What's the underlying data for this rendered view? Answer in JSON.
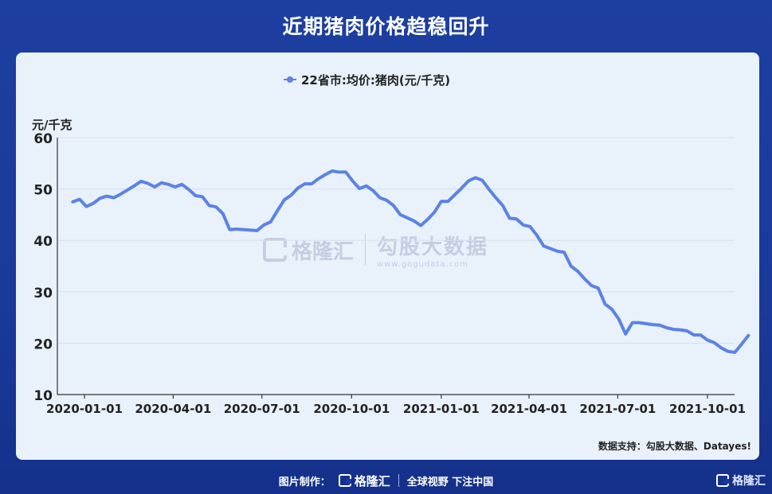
{
  "header": {
    "title": "近期猪肉价格趋稳回升"
  },
  "watermark": {
    "brand": "格隆汇",
    "partner": "勾股大数据",
    "partner_url": "www.gogudata.com"
  },
  "chart_data": {
    "type": "line",
    "ylabel": "元/千克",
    "ylim": [
      10,
      60
    ],
    "y_ticks": [
      "60",
      "50",
      "40",
      "30",
      "20",
      "10"
    ],
    "x_ticks": [
      "2020-01-01",
      "2020-04-01",
      "2020-07-01",
      "2020-10-01",
      "2021-01-01",
      "2021-04-01",
      "2021-07-01",
      "2021-10-01"
    ],
    "grid": true,
    "legend": "top-center",
    "series": [
      {
        "name": "22省市:均价:猪肉(元/千克)",
        "color": "#5b82e6",
        "points": [
          [
            "2019-12-20",
            47.5
          ],
          [
            "2019-12-27",
            48.0
          ],
          [
            "2020-01-03",
            46.6
          ],
          [
            "2020-01-10",
            47.2
          ],
          [
            "2020-01-17",
            48.2
          ],
          [
            "2020-01-24",
            48.6
          ],
          [
            "2020-01-31",
            48.3
          ],
          [
            "2020-02-07",
            49.0
          ],
          [
            "2020-02-14",
            49.8
          ],
          [
            "2020-02-21",
            50.6
          ],
          [
            "2020-02-28",
            51.5
          ],
          [
            "2020-03-06",
            51.1
          ],
          [
            "2020-03-13",
            50.4
          ],
          [
            "2020-03-20",
            51.2
          ],
          [
            "2020-03-27",
            50.9
          ],
          [
            "2020-04-03",
            50.4
          ],
          [
            "2020-04-10",
            50.9
          ],
          [
            "2020-04-17",
            49.9
          ],
          [
            "2020-04-24",
            48.7
          ],
          [
            "2020-05-01",
            48.5
          ],
          [
            "2020-05-08",
            46.8
          ],
          [
            "2020-05-15",
            46.5
          ],
          [
            "2020-05-22",
            45.2
          ],
          [
            "2020-05-29",
            42.1
          ],
          [
            "2020-06-05",
            42.2
          ],
          [
            "2020-06-12",
            42.1
          ],
          [
            "2020-06-19",
            42.0
          ],
          [
            "2020-06-26",
            41.9
          ],
          [
            "2020-07-03",
            43.0
          ],
          [
            "2020-07-10",
            43.6
          ],
          [
            "2020-07-17",
            45.8
          ],
          [
            "2020-07-24",
            47.9
          ],
          [
            "2020-07-31",
            48.8
          ],
          [
            "2020-08-07",
            50.2
          ],
          [
            "2020-08-14",
            51.0
          ],
          [
            "2020-08-21",
            51.0
          ],
          [
            "2020-08-28",
            52.0
          ],
          [
            "2020-09-04",
            52.8
          ],
          [
            "2020-09-11",
            53.5
          ],
          [
            "2020-09-18",
            53.3
          ],
          [
            "2020-09-25",
            53.3
          ],
          [
            "2020-10-02",
            51.6
          ],
          [
            "2020-10-09",
            50.1
          ],
          [
            "2020-10-16",
            50.6
          ],
          [
            "2020-10-23",
            49.7
          ],
          [
            "2020-10-30",
            48.3
          ],
          [
            "2020-11-06",
            47.8
          ],
          [
            "2020-11-13",
            46.8
          ],
          [
            "2020-11-20",
            45.0
          ],
          [
            "2020-11-27",
            44.4
          ],
          [
            "2020-12-04",
            43.8
          ],
          [
            "2020-12-11",
            42.9
          ],
          [
            "2020-12-18",
            44.1
          ],
          [
            "2020-12-25",
            45.5
          ],
          [
            "2021-01-01",
            47.6
          ],
          [
            "2021-01-08",
            47.6
          ],
          [
            "2021-01-15",
            48.9
          ],
          [
            "2021-01-22",
            50.2
          ],
          [
            "2021-01-29",
            51.6
          ],
          [
            "2021-02-05",
            52.2
          ],
          [
            "2021-02-12",
            51.7
          ],
          [
            "2021-02-19",
            49.9
          ],
          [
            "2021-02-26",
            48.3
          ],
          [
            "2021-03-05",
            46.8
          ],
          [
            "2021-03-12",
            44.3
          ],
          [
            "2021-03-19",
            44.2
          ],
          [
            "2021-03-26",
            43.0
          ],
          [
            "2021-04-02",
            42.7
          ],
          [
            "2021-04-09",
            41.0
          ],
          [
            "2021-04-16",
            38.9
          ],
          [
            "2021-04-23",
            38.4
          ],
          [
            "2021-04-30",
            37.9
          ],
          [
            "2021-05-07",
            37.7
          ],
          [
            "2021-05-14",
            35.0
          ],
          [
            "2021-05-21",
            34.0
          ],
          [
            "2021-05-28",
            32.5
          ],
          [
            "2021-06-04",
            31.2
          ],
          [
            "2021-06-11",
            30.7
          ],
          [
            "2021-06-18",
            27.6
          ],
          [
            "2021-06-25",
            26.6
          ],
          [
            "2021-07-02",
            24.7
          ],
          [
            "2021-07-09",
            21.8
          ],
          [
            "2021-07-16",
            24.0
          ],
          [
            "2021-07-23",
            24.0
          ],
          [
            "2021-07-30",
            23.8
          ],
          [
            "2021-08-06",
            23.6
          ],
          [
            "2021-08-13",
            23.5
          ],
          [
            "2021-08-20",
            23.0
          ],
          [
            "2021-08-27",
            22.7
          ],
          [
            "2021-09-03",
            22.6
          ],
          [
            "2021-09-10",
            22.4
          ],
          [
            "2021-09-17",
            21.6
          ],
          [
            "2021-09-24",
            21.6
          ],
          [
            "2021-10-01",
            20.6
          ],
          [
            "2021-10-08",
            20.1
          ],
          [
            "2021-10-15",
            19.1
          ],
          [
            "2021-10-22",
            18.4
          ],
          [
            "2021-10-29",
            18.2
          ],
          [
            "2021-11-05",
            19.8
          ],
          [
            "2021-11-12",
            21.5
          ]
        ]
      }
    ]
  },
  "source": {
    "text": "数据支持：勾股大数据、Datayes!"
  },
  "footer": {
    "made_by": "图片制作：",
    "brand": "格隆汇",
    "slogan": "全球视野 下注中国",
    "corner_brand": "格隆汇"
  }
}
